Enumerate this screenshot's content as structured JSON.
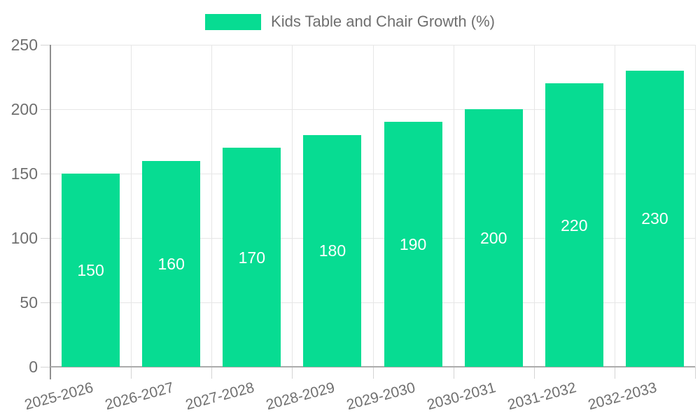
{
  "legend": {
    "label": "Kids Table and Chair Growth (%)",
    "swatch_style": "background:#07dc92"
  },
  "colors": {
    "bar": "#07dc92",
    "grid": "#e6e6e6",
    "y_axis": "#8f8f8f",
    "x_axis": "#ababab",
    "tick": "#d4d4d4",
    "label_text": "#6f6f6f",
    "bar_label_text": "#ffffff",
    "background": "#ffffff"
  },
  "chart_data": {
    "type": "bar",
    "title": "Kids Table and Chair Growth (%)",
    "categories": [
      "2025-2026",
      "2026-2027",
      "2027-2028",
      "2028-2029",
      "2029-2030",
      "2030-2031",
      "2031-2032",
      "2032-2033"
    ],
    "values": [
      150,
      160,
      170,
      180,
      190,
      200,
      220,
      230
    ],
    "bar_labels": [
      "150",
      "160",
      "170",
      "180",
      "190",
      "200",
      "220",
      "230"
    ],
    "xlabel": "",
    "ylabel": "",
    "ylim": [
      0,
      250
    ],
    "yticks": [
      0,
      50,
      100,
      150,
      200,
      250
    ],
    "grid": true,
    "vertical_grid": true,
    "legend_position": "top-center",
    "bar_label_position": "center"
  }
}
